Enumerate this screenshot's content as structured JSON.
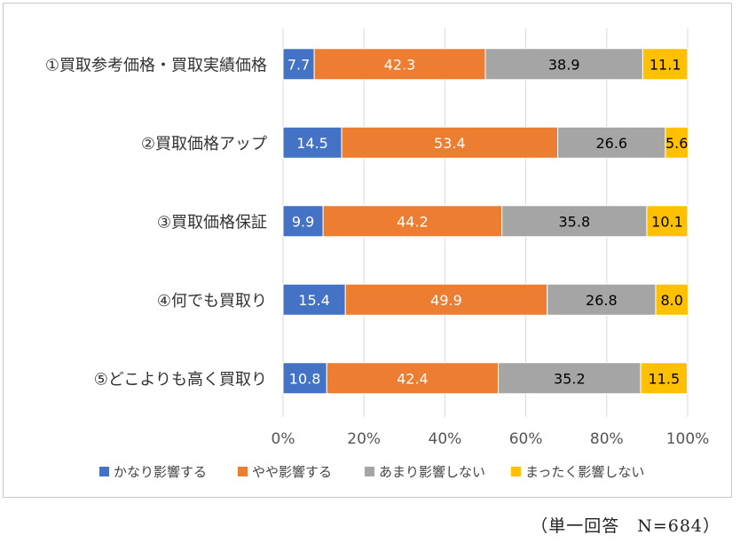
{
  "chart_data": {
    "type": "bar",
    "stacked": true,
    "orientation": "horizontal",
    "categories": [
      "①買取参考価格・買取実績価格",
      "②買取価格アップ",
      "③買取価格保証",
      "④何でも買取り",
      "⑤どこよりも高く買取り"
    ],
    "series": [
      {
        "name": "かなり影響する",
        "color": "#4472C4",
        "label_color": "#ffffff",
        "values": [
          7.7,
          14.5,
          9.9,
          15.4,
          10.8
        ]
      },
      {
        "name": "やや影響する",
        "color": "#ED7D31",
        "label_color": "#ffffff",
        "values": [
          42.3,
          53.4,
          44.2,
          49.9,
          42.4
        ]
      },
      {
        "name": "あまり影響しない",
        "color": "#A5A5A5",
        "label_color": "#000000",
        "values": [
          38.9,
          26.6,
          35.8,
          26.8,
          35.2
        ]
      },
      {
        "name": "まったく影響しない",
        "color": "#FFC000",
        "label_color": "#000000",
        "values": [
          11.1,
          5.6,
          10.1,
          8.0,
          11.5
        ]
      }
    ],
    "value_labels": [
      [
        "7.7",
        "14.5",
        "9.9",
        "15.4",
        "10.8"
      ],
      [
        "42.3",
        "53.4",
        "44.2",
        "49.9",
        "42.4"
      ],
      [
        "38.9",
        "26.6",
        "35.8",
        "26.8",
        "35.2"
      ],
      [
        "11.1",
        "5.6",
        "10.1",
        "8.0",
        "11.5"
      ]
    ],
    "xlim": [
      0,
      100
    ],
    "x_ticks": [
      0,
      20,
      40,
      60,
      80,
      100
    ],
    "x_tick_labels": [
      "0%",
      "20%",
      "40%",
      "60%",
      "80%",
      "100%"
    ],
    "grid": true,
    "legend_position": "bottom"
  },
  "footnote": "（単一回答　N=684）"
}
